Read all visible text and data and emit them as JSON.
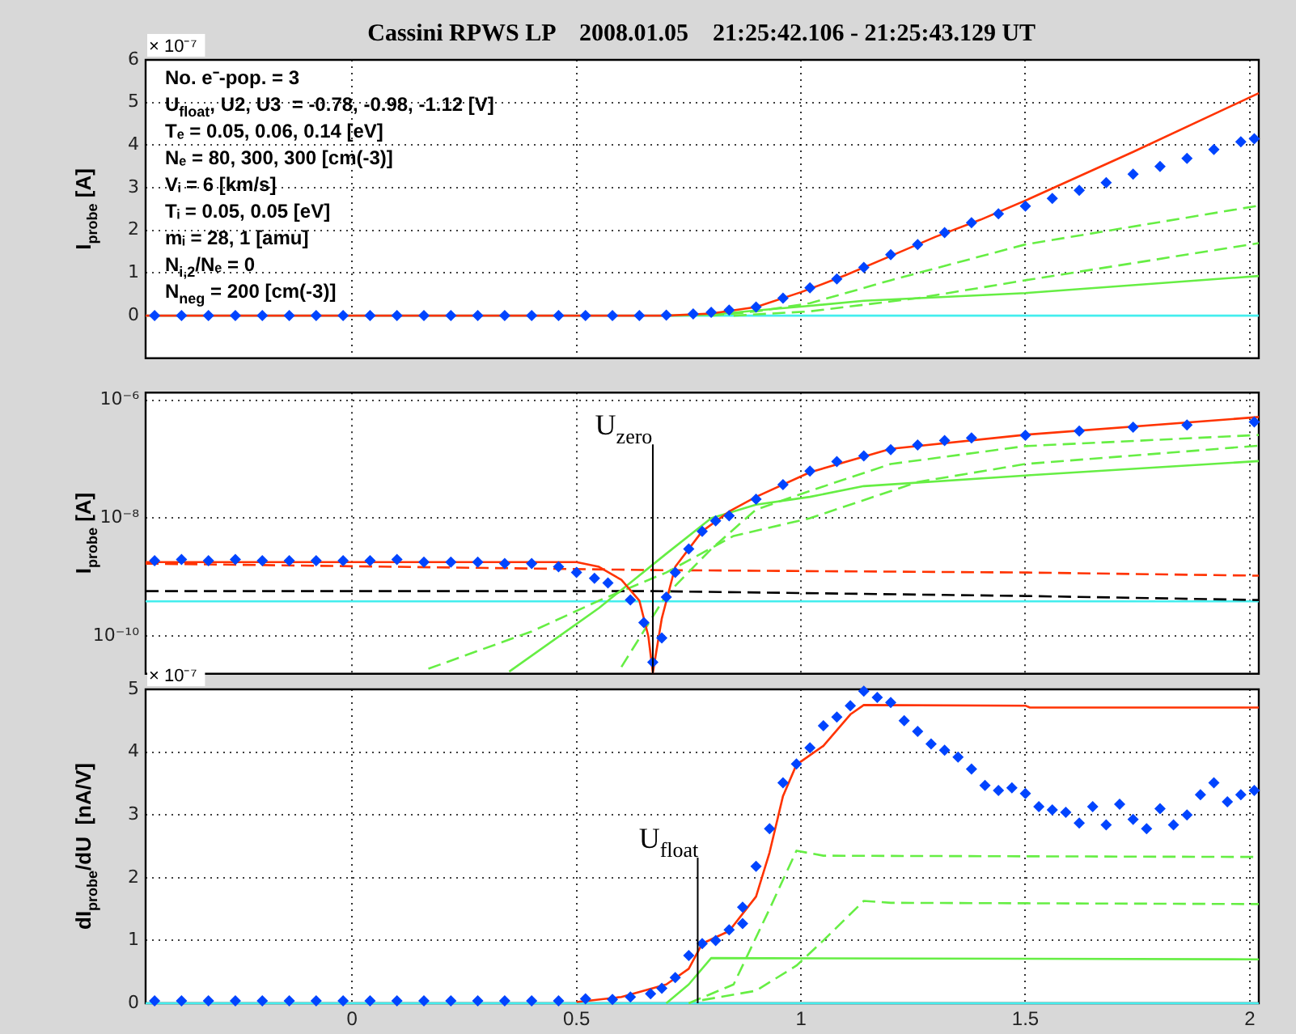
{
  "chart_data": [
    {
      "type": "line",
      "title": "Cassini RPWS LP    2008.01.05    21:25:42.106 - 21:25:43.129 UT",
      "ylabel": "I$_{probe}$ [A]",
      "xlim": [
        -0.46,
        2.02
      ],
      "xticks": [
        0,
        0.5,
        1,
        1.5,
        2
      ],
      "ylim": [
        -1,
        6
      ],
      "yticks": [
        0,
        1,
        2,
        3,
        4,
        5,
        6
      ],
      "grid": true,
      "tick_labels": "y",
      "annotations": [
        "× 10⁻⁷",
        "No. e⁻-pop. = 3",
        "U$_{float}$, U2, U3  = -0.78, -0.98, -1.12 [V]",
        "Tₑ = 0.05, 0.06, 0.14 [eV]",
        "Nₑ = 80, 300, 300 [cm(-3)]",
        "Vᵢ = 6 [km/s]",
        "Tᵢ = 0.05, 0.05 [eV]",
        "mᵢ = 28, 1 [amu]",
        "N$_{i,2}$/Nₑ = 0",
        "N$_{neg}$ = 200 [cm(-3)]"
      ],
      "series": [
        {
          "type": "line",
          "color": "#44eeee",
          "line_style": "solid",
          "x": [
            -0.46,
            2.02
          ],
          "values": [
            0,
            0
          ]
        },
        {
          "type": "line",
          "color": "#66ee44",
          "line_style": "solid",
          "x": [
            0.7,
            0.8,
            0.9,
            1.02,
            1.14,
            1.5,
            2.02
          ],
          "values": [
            0,
            0.02,
            0.12,
            0.23,
            0.35,
            0.53,
            0.93
          ]
        },
        {
          "type": "line",
          "color": "#66ee44",
          "line_style": "dashed",
          "x": [
            0.8,
            0.9,
            1.02,
            1.2,
            1.5,
            2.02
          ],
          "values": [
            0,
            0.1,
            0.29,
            0.83,
            1.67,
            2.58
          ]
        },
        {
          "type": "line",
          "color": "#66ee44",
          "line_style": "dashed",
          "x": [
            0.85,
            1.02,
            1.26,
            1.5,
            2.02
          ],
          "values": [
            0,
            0.1,
            0.41,
            0.83,
            1.7
          ]
        },
        {
          "type": "line",
          "color": "#ff3300",
          "line_style": "solid",
          "x": [
            -0.46,
            0.7,
            0.8,
            0.9,
            1.0,
            1.1,
            1.2,
            1.3,
            1.4,
            1.5,
            1.74,
            2.02
          ],
          "values": [
            0,
            0,
            0.05,
            0.2,
            0.55,
            0.95,
            1.4,
            1.85,
            2.25,
            2.7,
            3.84,
            5.22
          ]
        },
        {
          "type": "scatter",
          "color": "#0044ff",
          "marker": "diamond",
          "x": [
            -0.44,
            -0.38,
            -0.32,
            -0.26,
            -0.2,
            -0.14,
            -0.08,
            -0.02,
            0.04,
            0.1,
            0.16,
            0.22,
            0.28,
            0.34,
            0.4,
            0.46,
            0.52,
            0.58,
            0.64,
            0.7,
            0.76,
            0.8,
            0.84,
            0.9,
            0.96,
            1.02,
            1.08,
            1.14,
            1.2,
            1.26,
            1.32,
            1.38,
            1.44,
            1.5,
            1.56,
            1.62,
            1.68,
            1.74,
            1.8,
            1.86,
            1.92,
            1.98,
            2.01
          ],
          "values": [
            0,
            0,
            0,
            0,
            0,
            0,
            0,
            0,
            0,
            0,
            0,
            0,
            0,
            0,
            0,
            0,
            0,
            0,
            0,
            0.01,
            0.04,
            0.08,
            0.13,
            0.2,
            0.41,
            0.65,
            0.86,
            1.13,
            1.43,
            1.67,
            1.95,
            2.18,
            2.39,
            2.57,
            2.75,
            2.94,
            3.12,
            3.32,
            3.5,
            3.69,
            3.9,
            4.08,
            4.15
          ]
        }
      ]
    },
    {
      "type": "line",
      "ylabel": "I$_{probe}$ [A]",
      "log": true,
      "xlim": [
        -0.46,
        2.02
      ],
      "xticks": [
        0,
        0.5,
        1,
        1.5,
        2
      ],
      "ylim": [
        2.3e-11,
        1.35e-06
      ],
      "yticks": [
        {
          "value": 1e-10,
          "label": "10⁻¹⁰"
        },
        {
          "value": 1e-08,
          "label": "10⁻⁸"
        },
        {
          "value": 1e-06,
          "label": "10⁻⁶"
        }
      ],
      "grid": true,
      "tick_labels": "y",
      "ref_lines": [
        {
          "axis": "x",
          "value": 0.67,
          "label": "U$_{zero}$",
          "color": "#000000"
        }
      ],
      "series": [
        {
          "type": "line",
          "color": "#44eeee",
          "line_style": "solid",
          "x": [
            -0.46,
            2.02
          ],
          "values": [
            3.9e-10,
            3.9e-10
          ]
        },
        {
          "type": "line",
          "color": "#000000",
          "line_style": "dashed",
          "x": [
            -0.46,
            0.67,
            1.5,
            2.02
          ],
          "values": [
            5.8e-10,
            5.8e-10,
            4.8e-10,
            4.1e-10
          ]
        },
        {
          "type": "line",
          "color": "#ff3300",
          "line_style": "dashed",
          "x": [
            -0.46,
            0.67,
            1.5,
            2.02
          ],
          "values": [
            1.7e-09,
            1.32e-09,
            1.2e-09,
            1.06e-09
          ]
        },
        {
          "type": "line",
          "color": "#66ee44",
          "line_style": "solid",
          "x": [
            0.35,
            0.55,
            0.7,
            0.8,
            0.9,
            1.02,
            1.14,
            1.5,
            2.02
          ],
          "values": [
            2.5e-11,
            3e-10,
            2.5e-09,
            1e-08,
            1.7e-08,
            2.3e-08,
            3.5e-08,
            5.3e-08,
            9.3e-08
          ]
        },
        {
          "type": "line",
          "color": "#66ee44",
          "line_style": "dashed",
          "x": [
            0.6,
            0.7,
            0.8,
            0.9,
            1.02,
            1.2,
            1.5,
            2.02
          ],
          "values": [
            3e-11,
            5e-10,
            3e-09,
            1.4e-08,
            2.9e-08,
            8.3e-08,
            1.67e-07,
            2.58e-07
          ]
        },
        {
          "type": "line",
          "color": "#66ee44",
          "line_style": "dashed",
          "x": [
            0.17,
            0.4,
            0.55,
            0.7,
            0.85,
            1.02,
            1.26,
            1.5,
            2.02
          ],
          "values": [
            2.8e-11,
            1.2e-10,
            4e-10,
            1.2e-09,
            5e-09,
            1e-08,
            4.1e-08,
            8.3e-08,
            1.7e-07
          ]
        },
        {
          "type": "line",
          "color": "#ff3300",
          "line_style": "solid",
          "x": [
            -0.46,
            0.5,
            0.55,
            0.6,
            0.64,
            0.66,
            0.67,
            0.69,
            0.72,
            0.78,
            0.84,
            0.9,
            1.02,
            1.2,
            1.5,
            2.02
          ],
          "values": [
            1.8e-09,
            1.8e-09,
            1.5e-09,
            9e-10,
            4e-10,
            1e-10,
            2.4e-11,
            2e-10,
            1.5e-09,
            6e-09,
            1.3e-08,
            2.3e-08,
            6e-08,
            1.5e-07,
            2.6e-07,
            5.2e-07
          ]
        },
        {
          "type": "scatter",
          "color": "#0044ff",
          "marker": "diamond",
          "x": [
            -0.44,
            -0.38,
            -0.32,
            -0.26,
            -0.2,
            -0.14,
            -0.08,
            -0.02,
            0.04,
            0.1,
            0.16,
            0.22,
            0.28,
            0.34,
            0.4,
            0.46,
            0.5,
            0.54,
            0.57,
            0.62,
            0.65,
            0.67,
            0.69,
            0.7,
            0.72,
            0.75,
            0.78,
            0.81,
            0.84,
            0.9,
            0.96,
            1.02,
            1.08,
            1.14,
            1.2,
            1.26,
            1.32,
            1.38,
            1.5,
            1.62,
            1.74,
            1.86,
            2.01
          ],
          "values": [
            1.9e-09,
            2e-09,
            1.9e-09,
            2e-09,
            1.9e-09,
            1.9e-09,
            1.9e-09,
            1.9e-09,
            1.9e-09,
            2e-09,
            1.8e-09,
            1.8e-09,
            1.8e-09,
            1.7e-09,
            1.7e-09,
            1.5e-09,
            1.2e-09,
            9.6e-10,
            8e-10,
            4.1e-10,
            1.7e-10,
            3.6e-11,
            9.3e-11,
            4.6e-10,
            1.2e-09,
            3e-09,
            6e-09,
            9e-09,
            1.1e-08,
            2.1e-08,
            3.7e-08,
            6.3e-08,
            9.1e-08,
            1.14e-07,
            1.45e-07,
            1.75e-07,
            2.07e-07,
            2.3e-07,
            2.55e-07,
            3e-07,
            3.5e-07,
            3.8e-07,
            4.3e-07
          ]
        }
      ]
    },
    {
      "type": "line",
      "ylabel": "dI$_{probe}$/dU  [nA/V]",
      "xlim": [
        -0.46,
        2.02
      ],
      "xticks": [
        0,
        0.5,
        1,
        1.5,
        2
      ],
      "ylim": [
        0,
        5
      ],
      "yticks": [
        0,
        1,
        2,
        3,
        4,
        5
      ],
      "grid": true,
      "annotations": [
        "× 10⁻⁷"
      ],
      "ref_lines": [
        {
          "axis": "x",
          "value": 0.77,
          "label": "U$_{float}$",
          "color": "#000000"
        }
      ],
      "series": [
        {
          "type": "line",
          "color": "#44eeee",
          "line_style": "solid",
          "x": [
            -0.46,
            2.02
          ],
          "values": [
            0,
            0
          ]
        },
        {
          "type": "line",
          "color": "#66ee44",
          "line_style": "solid",
          "x": [
            0.7,
            0.75,
            0.8,
            2.02
          ],
          "values": [
            0,
            0.3,
            0.72,
            0.7
          ]
        },
        {
          "type": "line",
          "color": "#66ee44",
          "line_style": "dashed",
          "x": [
            0.75,
            0.85,
            0.93,
            0.99,
            1.05,
            2.02
          ],
          "values": [
            0,
            0.3,
            1.5,
            2.43,
            2.35,
            2.33
          ]
        },
        {
          "type": "line",
          "color": "#66ee44",
          "line_style": "dashed",
          "x": [
            0.78,
            0.9,
            0.99,
            1.05,
            1.14,
            1.2,
            2.02
          ],
          "values": [
            0.05,
            0.2,
            0.6,
            1.0,
            1.63,
            1.6,
            1.58
          ]
        },
        {
          "type": "line",
          "color": "#ff3300",
          "line_style": "solid",
          "x": [
            0.5,
            0.6,
            0.7,
            0.75,
            0.78,
            0.84,
            0.9,
            0.93,
            0.96,
            0.99,
            1.05,
            1.11,
            1.14,
            1.5,
            1.51,
            2.02
          ],
          "values": [
            0.02,
            0.1,
            0.3,
            0.55,
            0.95,
            1.15,
            1.7,
            2.4,
            3.3,
            3.8,
            4.1,
            4.6,
            4.75,
            4.74,
            4.71,
            4.71
          ]
        },
        {
          "type": "scatter",
          "color": "#0044ff",
          "marker": "diamond",
          "x": [
            -0.44,
            -0.38,
            -0.32,
            -0.26,
            -0.2,
            -0.14,
            -0.08,
            -0.02,
            0.04,
            0.1,
            0.16,
            0.22,
            0.28,
            0.34,
            0.4,
            0.46,
            0.52,
            0.58,
            0.62,
            0.665,
            0.69,
            0.72,
            0.75,
            0.78,
            0.81,
            0.84,
            0.87,
            0.87,
            0.9,
            0.93,
            0.96,
            0.99,
            1.02,
            1.05,
            1.08,
            1.11,
            1.14,
            1.17,
            1.2,
            1.23,
            1.26,
            1.29,
            1.32,
            1.35,
            1.38,
            1.41,
            1.44,
            1.47,
            1.5,
            1.53,
            1.56,
            1.59,
            1.62,
            1.65,
            1.68,
            1.71,
            1.74,
            1.77,
            1.8,
            1.83,
            1.86,
            1.89,
            1.92,
            1.95,
            1.98,
            2.01
          ],
          "values": [
            0.04,
            0.04,
            0.04,
            0.04,
            0.04,
            0.04,
            0.04,
            0.04,
            0.04,
            0.04,
            0.04,
            0.04,
            0.04,
            0.04,
            0.04,
            0.04,
            0.07,
            0.06,
            0.1,
            0.15,
            0.24,
            0.41,
            0.76,
            0.95,
            1.0,
            1.17,
            1.27,
            1.53,
            2.18,
            2.78,
            3.51,
            3.81,
            4.07,
            4.42,
            4.56,
            4.74,
            4.97,
            4.87,
            4.79,
            4.5,
            4.33,
            4.13,
            4.03,
            3.92,
            3.73,
            3.47,
            3.39,
            3.43,
            3.34,
            3.13,
            3.08,
            3.04,
            2.87,
            3.13,
            2.84,
            3.17,
            2.93,
            2.78,
            3.1,
            2.84,
            3.0,
            3.32,
            3.51,
            3.21,
            3.32,
            3.39
          ]
        }
      ]
    }
  ]
}
